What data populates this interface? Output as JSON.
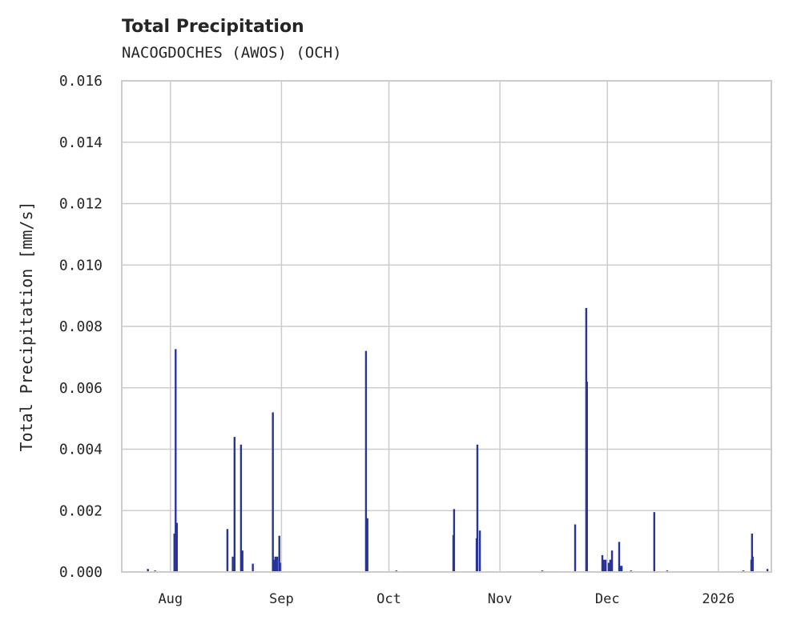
{
  "chart_data": {
    "type": "bar",
    "title": "Total Precipitation",
    "subtitle": "NACOGDOCHES (AWOS) (OCH)",
    "xlabel": "",
    "ylabel": "Total Precipitation [mm/s]",
    "x_unit": "days since 2025-08-01",
    "xlim": [
      -13.6,
      167.8
    ],
    "ylim": [
      0,
      0.016
    ],
    "grid": true,
    "color": "#27349a",
    "yticks": [
      0,
      0.002,
      0.004,
      0.006,
      0.008,
      0.01,
      0.012,
      0.014,
      0.016
    ],
    "ytick_labels": [
      "0.000",
      "0.002",
      "0.004",
      "0.006",
      "0.008",
      "0.010",
      "0.012",
      "0.014",
      "0.016"
    ],
    "xticks": [
      0,
      31,
      61,
      92,
      122,
      153
    ],
    "xtick_labels": [
      "Aug",
      "Sep",
      "Oct",
      "Nov",
      "Dec",
      "2026"
    ],
    "bars": [
      [
        -6.3,
        0.0001
      ],
      [
        -4.3,
        5e-05
      ],
      [
        1.1,
        0.00125
      ],
      [
        1.45,
        0.00726
      ],
      [
        1.8,
        0.0016
      ],
      [
        15.9,
        0.0014
      ],
      [
        17.4,
        0.0005
      ],
      [
        17.9,
        0.0044
      ],
      [
        19.7,
        0.00415
      ],
      [
        20.1,
        0.0007
      ],
      [
        23.0,
        0.00027
      ],
      [
        28.6,
        0.0052
      ],
      [
        28.9,
        0.0004
      ],
      [
        29.3,
        0.0005
      ],
      [
        29.8,
        0.0005
      ],
      [
        30.4,
        0.00118
      ],
      [
        30.6,
        0.0003
      ],
      [
        54.6,
        0.0072
      ],
      [
        55.0,
        0.00175
      ],
      [
        63.1,
        5e-05
      ],
      [
        79.0,
        0.0012
      ],
      [
        79.2,
        0.00205
      ],
      [
        85.5,
        0.0011
      ],
      [
        85.7,
        0.00415
      ],
      [
        86.4,
        0.00135
      ],
      [
        103.8,
        5e-05
      ],
      [
        113.0,
        0.00155
      ],
      [
        116.1,
        0.0086
      ],
      [
        116.3,
        0.0062
      ],
      [
        120.6,
        0.00055
      ],
      [
        121.0,
        0.0004
      ],
      [
        121.5,
        0.0004
      ],
      [
        122.4,
        0.0003
      ],
      [
        122.8,
        0.0004
      ],
      [
        123.3,
        0.0007
      ],
      [
        125.3,
        0.00098
      ],
      [
        125.5,
        0.0002
      ],
      [
        126.0,
        0.0002
      ],
      [
        128.6,
        5e-05
      ],
      [
        135.1,
        0.00195
      ],
      [
        138.7,
        5e-05
      ],
      [
        160.0,
        5e-05
      ],
      [
        162.2,
        0.0004
      ],
      [
        162.4,
        0.00125
      ],
      [
        162.6,
        0.0005
      ],
      [
        166.7,
        0.0001
      ]
    ]
  }
}
